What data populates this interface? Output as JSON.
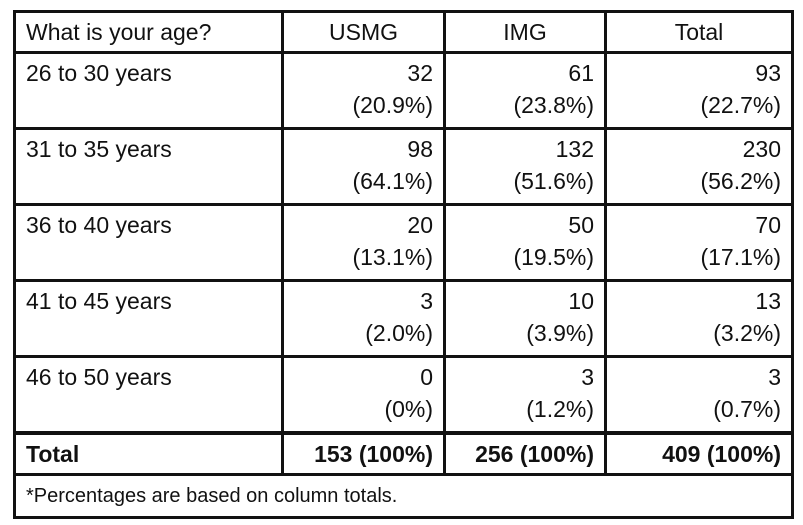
{
  "table": {
    "header": [
      "What is your age?",
      "USMG",
      "IMG",
      "Total"
    ],
    "rows": [
      {
        "label": "26 to 30 years",
        "cells": [
          [
            32,
            "(20.9%)"
          ],
          [
            61,
            "(23.8%)"
          ],
          [
            93,
            "(22.7%)"
          ]
        ]
      },
      {
        "label": "31 to 35 years",
        "cells": [
          [
            98,
            "(64.1%)"
          ],
          [
            132,
            "(51.6%)"
          ],
          [
            230,
            "(56.2%)"
          ]
        ]
      },
      {
        "label": "36 to 40 years",
        "cells": [
          [
            20,
            "(13.1%)"
          ],
          [
            50,
            "(19.5%)"
          ],
          [
            70,
            "(17.1%)"
          ]
        ]
      },
      {
        "label": "41 to 45 years",
        "cells": [
          [
            3,
            "(2.0%)"
          ],
          [
            10,
            "(3.9%)"
          ],
          [
            13,
            "(3.2%)"
          ]
        ]
      },
      {
        "label": "46 to 50 years",
        "cells": [
          [
            0,
            "(0%)"
          ],
          [
            3,
            "(1.2%)"
          ],
          [
            3,
            "(0.7%)"
          ]
        ]
      }
    ],
    "total": {
      "label": "Total",
      "cells": [
        "153 (100%)",
        "256 (100%)",
        "409 (100%)"
      ]
    },
    "footnote": "*Percentages are based on column totals."
  }
}
